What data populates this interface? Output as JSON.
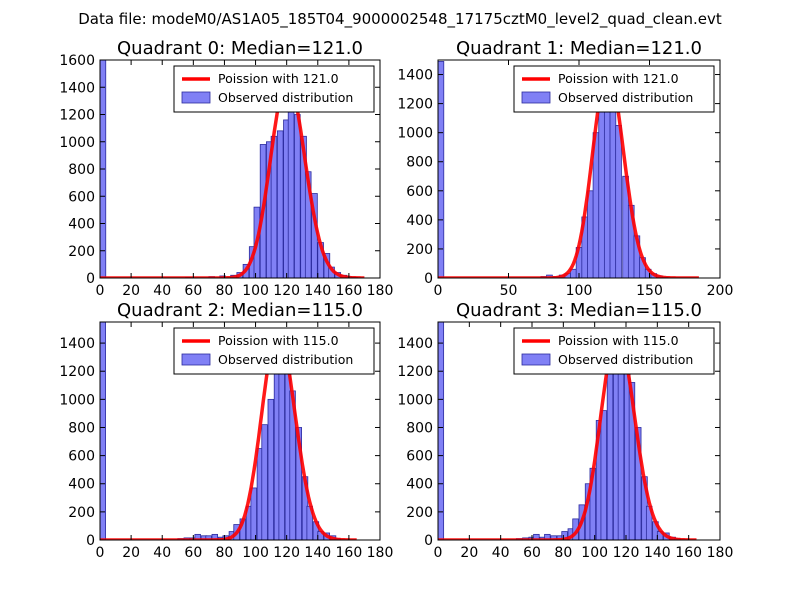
{
  "suptitle": "Data file: modeM0/AS1A05_185T04_9000002548_17175cztM0_level2_quad_clean.evt",
  "colors": {
    "hist_fill": "#8080f5",
    "hist_edge": "#2b2b9e",
    "poisson_line": "#ff0000",
    "background": "#ffffff"
  },
  "chart_data": [
    {
      "type": "bar",
      "title": "Quadrant 0: Median=121.0",
      "xlim": [
        0,
        180
      ],
      "ylim": [
        0,
        1600
      ],
      "xticks": [
        0,
        20,
        40,
        60,
        80,
        100,
        120,
        140,
        160,
        180
      ],
      "yticks": [
        0,
        200,
        400,
        600,
        800,
        1000,
        1200,
        1400,
        1600
      ],
      "legend": [
        "Poission with 121.0",
        "Observed distribution"
      ],
      "series": [
        {
          "name": "Observed distribution",
          "bin_width": 3.7,
          "bins": [
            [
              0,
              1600
            ],
            [
              55,
              5
            ],
            [
              70,
              10
            ],
            [
              77,
              15
            ],
            [
              84,
              20
            ],
            [
              88,
              40
            ],
            [
              92,
              100
            ],
            [
              96,
              230
            ],
            [
              99,
              520
            ],
            [
              103,
              980
            ],
            [
              107,
              1000
            ],
            [
              110,
              1040
            ],
            [
              114,
              1080
            ],
            [
              118,
              1160
            ],
            [
              121,
              1230
            ],
            [
              125,
              1200
            ],
            [
              129,
              1040
            ],
            [
              132,
              780
            ],
            [
              136,
              620
            ],
            [
              140,
              260
            ],
            [
              144,
              180
            ],
            [
              147,
              80
            ],
            [
              151,
              40
            ],
            [
              155,
              20
            ],
            [
              158,
              10
            ],
            [
              162,
              5
            ]
          ]
        },
        {
          "name": "Poission with 121.0",
          "lambda": 121.0,
          "peak": 1450,
          "x_range": [
            0,
            170
          ]
        }
      ]
    },
    {
      "type": "bar",
      "title": "Quadrant 1: Median=121.0",
      "xlim": [
        0,
        200
      ],
      "ylim": [
        0,
        1500
      ],
      "xticks": [
        0,
        50,
        100,
        150,
        200
      ],
      "yticks": [
        0,
        200,
        400,
        600,
        800,
        1000,
        1200,
        1400
      ],
      "legend": [
        "Poission with 121.0",
        "Observed distribution"
      ],
      "series": [
        {
          "name": "Observed distribution",
          "bin_width": 4.1,
          "bins": [
            [
              0,
              1490
            ],
            [
              73,
              10
            ],
            [
              77,
              20
            ],
            [
              82,
              10
            ],
            [
              86,
              20
            ],
            [
              90,
              30
            ],
            [
              94,
              60
            ],
            [
              98,
              210
            ],
            [
              102,
              420
            ],
            [
              106,
              600
            ],
            [
              110,
              1000
            ],
            [
              114,
              1200
            ],
            [
              118,
              1300
            ],
            [
              122,
              1210
            ],
            [
              126,
              1050
            ],
            [
              131,
              700
            ],
            [
              135,
              500
            ],
            [
              139,
              290
            ],
            [
              143,
              140
            ],
            [
              147,
              60
            ],
            [
              151,
              30
            ],
            [
              155,
              15
            ],
            [
              159,
              5
            ]
          ]
        },
        {
          "name": "Poission with 121.0",
          "lambda": 121.0,
          "peak": 1420,
          "x_range": [
            0,
            185
          ]
        }
      ]
    },
    {
      "type": "bar",
      "title": "Quadrant 2: Median=115.0",
      "xlim": [
        0,
        180
      ],
      "ylim": [
        0,
        1550
      ],
      "xticks": [
        0,
        20,
        40,
        60,
        80,
        100,
        120,
        140,
        160,
        180
      ],
      "yticks": [
        0,
        200,
        400,
        600,
        800,
        1000,
        1200,
        1400
      ],
      "legend": [
        "Poission with 115.0",
        "Observed distribution"
      ],
      "series": [
        {
          "name": "Observed distribution",
          "bin_width": 3.6,
          "bins": [
            [
              0,
              1550
            ],
            [
              50,
              10
            ],
            [
              54,
              15
            ],
            [
              58,
              15
            ],
            [
              61,
              40
            ],
            [
              65,
              30
            ],
            [
              68,
              30
            ],
            [
              72,
              40
            ],
            [
              76,
              20
            ],
            [
              79,
              30
            ],
            [
              83,
              60
            ],
            [
              86,
              110
            ],
            [
              90,
              150
            ],
            [
              94,
              240
            ],
            [
              97,
              370
            ],
            [
              101,
              650
            ],
            [
              104,
              820
            ],
            [
              108,
              1000
            ],
            [
              112,
              1290
            ],
            [
              115,
              1320
            ],
            [
              119,
              1300
            ],
            [
              122,
              1060
            ],
            [
              126,
              800
            ],
            [
              130,
              450
            ],
            [
              133,
              240
            ],
            [
              137,
              130
            ],
            [
              140,
              60
            ],
            [
              144,
              50
            ],
            [
              148,
              30
            ],
            [
              151,
              10
            ]
          ]
        },
        {
          "name": "Poission with 115.0",
          "lambda": 115.0,
          "peak": 1480,
          "x_range": [
            0,
            165
          ]
        }
      ]
    },
    {
      "type": "bar",
      "title": "Quadrant 3: Median=115.0",
      "xlim": [
        0,
        180
      ],
      "ylim": [
        0,
        1550
      ],
      "xticks": [
        0,
        20,
        40,
        60,
        80,
        100,
        120,
        140,
        160,
        180
      ],
      "yticks": [
        0,
        200,
        400,
        600,
        800,
        1000,
        1200,
        1400
      ],
      "legend": [
        "Poission with 115.0",
        "Observed distribution"
      ],
      "series": [
        {
          "name": "Observed distribution",
          "bin_width": 3.6,
          "bins": [
            [
              0,
              1550
            ],
            [
              50,
              10
            ],
            [
              54,
              15
            ],
            [
              58,
              20
            ],
            [
              61,
              40
            ],
            [
              65,
              20
            ],
            [
              68,
              40
            ],
            [
              72,
              30
            ],
            [
              76,
              30
            ],
            [
              79,
              60
            ],
            [
              83,
              80
            ],
            [
              86,
              150
            ],
            [
              90,
              250
            ],
            [
              94,
              400
            ],
            [
              97,
              510
            ],
            [
              101,
              850
            ],
            [
              104,
              920
            ],
            [
              108,
              1180
            ],
            [
              112,
              1290
            ],
            [
              115,
              1380
            ],
            [
              119,
              1180
            ],
            [
              122,
              1120
            ],
            [
              126,
              800
            ],
            [
              130,
              450
            ],
            [
              133,
              240
            ],
            [
              137,
              130
            ],
            [
              140,
              60
            ],
            [
              144,
              50
            ],
            [
              148,
              20
            ],
            [
              151,
              10
            ]
          ]
        },
        {
          "name": "Poission with 115.0",
          "lambda": 115.0,
          "peak": 1460,
          "x_range": [
            0,
            165
          ]
        }
      ]
    }
  ]
}
